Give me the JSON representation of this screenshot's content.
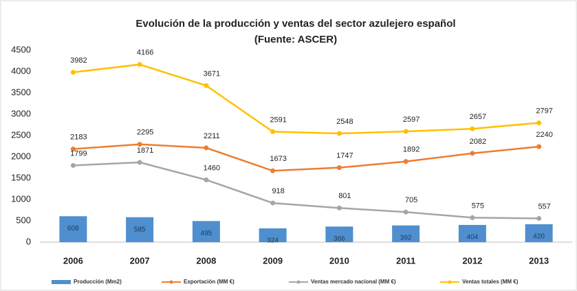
{
  "chart_data": {
    "type": "combo",
    "title": "Evolución de la producción y ventas del sector azulejero español",
    "subtitle": "(Fuente: ASCER)",
    "categories": [
      "2006",
      "2007",
      "2008",
      "2009",
      "2010",
      "2011",
      "2012",
      "2013"
    ],
    "ylim": [
      0,
      4500
    ],
    "yticks": [
      0,
      500,
      1000,
      1500,
      2000,
      2500,
      3000,
      3500,
      4000,
      4500
    ],
    "grid": false,
    "legend": "bottom",
    "series": [
      {
        "name": "Producción (Mm2)",
        "type": "bar",
        "color": "#4f8fcf",
        "values": [
          608,
          585,
          495,
          324,
          366,
          392,
          404,
          420
        ]
      },
      {
        "name": "Exportación (MM €)",
        "type": "line",
        "color": "#ed7d31",
        "values": [
          2183,
          2295,
          2211,
          1673,
          1747,
          1892,
          2082,
          2240
        ]
      },
      {
        "name": "Ventas mercado nacional (MM €)",
        "type": "line",
        "color": "#a5a5a5",
        "values": [
          1799,
          1871,
          1460,
          918,
          801,
          705,
          575,
          557
        ]
      },
      {
        "name": "Ventas totales (MM €)",
        "type": "line",
        "color": "#ffc000",
        "values": [
          3982,
          4166,
          3671,
          2591,
          2548,
          2597,
          2657,
          2797
        ]
      }
    ]
  }
}
